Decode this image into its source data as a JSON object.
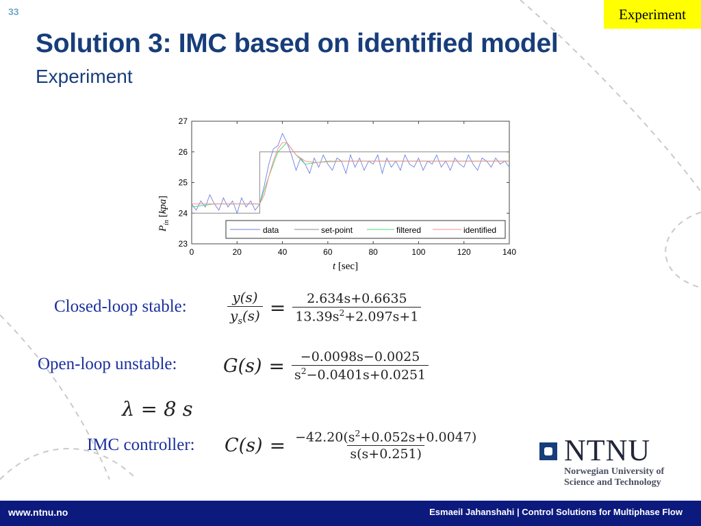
{
  "slide": {
    "number": "33",
    "tag": "Experiment",
    "title": "Solution 3: IMC based on identified model",
    "subtitle": "Experiment"
  },
  "chart_data": {
    "type": "line",
    "xlabel": "t [sec]",
    "ylabel": "P in [kpa]",
    "xlim": [
      0,
      140
    ],
    "ylim": [
      23,
      27
    ],
    "xticks": [
      0,
      20,
      40,
      60,
      80,
      100,
      120,
      140
    ],
    "yticks": [
      23,
      24,
      25,
      26,
      27
    ],
    "grid": false,
    "legend_position": "bottom-right",
    "series": [
      {
        "name": "data",
        "color": "#6f7fe0",
        "x": [
          0,
          2,
          4,
          6,
          8,
          10,
          12,
          14,
          16,
          18,
          20,
          22,
          24,
          26,
          28,
          30,
          32,
          34,
          36,
          38,
          40,
          42,
          44,
          46,
          48,
          50,
          52,
          54,
          56,
          58,
          60,
          62,
          64,
          66,
          68,
          70,
          72,
          74,
          76,
          78,
          80,
          82,
          84,
          86,
          88,
          90,
          92,
          94,
          96,
          98,
          100,
          102,
          104,
          106,
          108,
          110,
          112,
          114,
          116,
          118,
          120,
          122,
          124,
          126,
          128,
          130,
          132,
          134,
          136,
          138,
          140
        ],
        "y": [
          24.3,
          24.1,
          24.4,
          24.2,
          24.6,
          24.3,
          24.1,
          24.5,
          24.2,
          24.4,
          24.0,
          24.5,
          24.2,
          24.4,
          24.1,
          24.3,
          24.9,
          25.6,
          26.1,
          26.2,
          26.6,
          26.3,
          25.9,
          25.4,
          25.8,
          25.6,
          25.3,
          25.8,
          25.5,
          25.9,
          25.6,
          25.4,
          25.8,
          25.7,
          25.3,
          25.9,
          25.5,
          25.8,
          25.4,
          25.7,
          25.6,
          25.9,
          25.3,
          25.8,
          25.5,
          25.7,
          25.4,
          25.9,
          25.6,
          25.5,
          25.8,
          25.4,
          25.7,
          25.6,
          25.9,
          25.5,
          25.7,
          25.4,
          25.8,
          25.6,
          25.5,
          25.9,
          25.6,
          25.4,
          25.8,
          25.7,
          25.5,
          25.8,
          25.6,
          25.7,
          25.5
        ]
      },
      {
        "name": "set-point",
        "color": "#888888",
        "x": [
          0,
          30,
          30,
          140
        ],
        "y": [
          24,
          24,
          26,
          26
        ]
      },
      {
        "name": "filtered",
        "color": "#4bd87a",
        "x": [
          0,
          10,
          20,
          30,
          34,
          38,
          42,
          46,
          50,
          60,
          70,
          80,
          90,
          100,
          110,
          120,
          130,
          140
        ],
        "y": [
          24.2,
          24.3,
          24.3,
          24.3,
          25.2,
          26.0,
          26.3,
          25.9,
          25.6,
          25.7,
          25.7,
          25.7,
          25.7,
          25.7,
          25.7,
          25.7,
          25.7,
          25.7
        ]
      },
      {
        "name": "identified",
        "color": "#ff8c8c",
        "x": [
          0,
          10,
          20,
          30,
          32,
          34,
          36,
          38,
          40,
          42,
          44,
          46,
          50,
          55,
          60,
          70,
          80,
          100,
          120,
          140
        ],
        "y": [
          24.3,
          24.3,
          24.3,
          24.3,
          24.6,
          25.2,
          25.7,
          26.1,
          26.3,
          26.3,
          26.1,
          25.9,
          25.7,
          25.65,
          25.68,
          25.7,
          25.7,
          25.7,
          25.7,
          25.7
        ]
      }
    ]
  },
  "equations": {
    "closed_loop": {
      "label": "Closed-loop stable:",
      "lhs_num": "y(s)",
      "lhs_den": "ys(s)",
      "eq": "=",
      "num": "2.634s+0.6635",
      "den": "13.39s2+2.097s+1"
    },
    "open_loop": {
      "label": "Open-loop unstable:",
      "lhs": "G(s)",
      "eq": "=",
      "num": "−0.0098s−0.0025",
      "den": "s2−0.0401s+0.0251"
    },
    "lambda": {
      "text": "λ = 8 s"
    },
    "imc": {
      "label": "IMC controller:",
      "lhs": "C(s)",
      "eq": "=",
      "num": "−42.20(s2+0.052s+0.0047)",
      "den": "s(s+0.251)"
    }
  },
  "logo": {
    "word": "NTNU",
    "line1": "Norwegian University of",
    "line2": "Science and Technology"
  },
  "footer": {
    "url": "www.ntnu.no",
    "credit": "Esmaeil Jahanshahi  |  Control Solutions for Multiphase Flow"
  }
}
